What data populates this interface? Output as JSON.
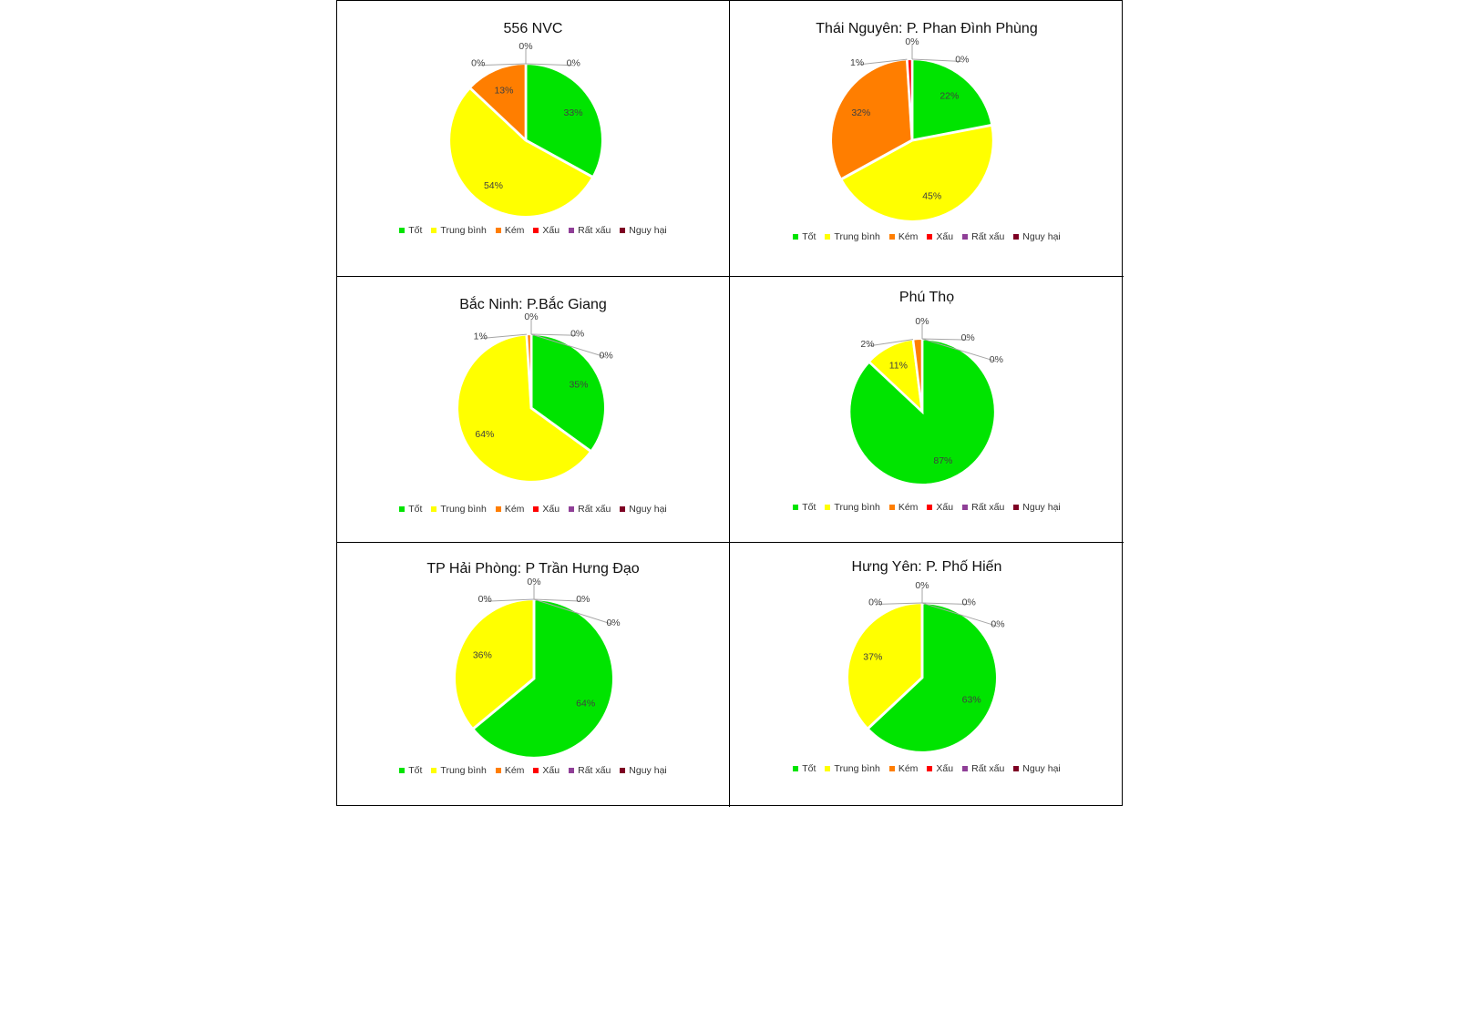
{
  "legend_labels": [
    "Tốt",
    "Trung bình",
    "Kém",
    "Xấu",
    "Rất xấu",
    "Nguy hại"
  ],
  "colors": [
    "#00e400",
    "#ffff00",
    "#ff7e00",
    "#ff0000",
    "#8f3f97",
    "#7e0023"
  ],
  "chart_data": [
    {
      "type": "pie",
      "title": "556 NVC",
      "categories": [
        "Tốt",
        "Trung bình",
        "Kém",
        "Xấu",
        "Rất xấu",
        "Nguy hại"
      ],
      "values": [
        33,
        54,
        13,
        0,
        0,
        0
      ],
      "labels": [
        "33%",
        "54%",
        "13%",
        "0%",
        "0%",
        "0%"
      ],
      "legend": "bottom"
    },
    {
      "type": "pie",
      "title": "Thái Nguyên: P. Phan Đình Phùng",
      "categories": [
        "Tốt",
        "Trung bình",
        "Kém",
        "Xấu",
        "Rất xấu",
        "Nguy hại"
      ],
      "values": [
        22,
        45,
        32,
        1,
        0,
        0
      ],
      "labels": [
        "22%",
        "45%",
        "32%",
        "1%",
        "0%",
        "0%"
      ],
      "legend": "bottom"
    },
    {
      "type": "pie",
      "title": "Bắc Ninh: P.Bắc Giang",
      "categories": [
        "Tốt",
        "Trung bình",
        "Kém",
        "Xấu",
        "Rất xấu",
        "Nguy hại"
      ],
      "values": [
        35,
        64,
        1,
        0,
        0,
        0
      ],
      "labels": [
        "35%",
        "64%",
        "1%",
        "0%",
        "0%",
        "0%"
      ],
      "legend": "bottom"
    },
    {
      "type": "pie",
      "title": "Phú Thọ",
      "categories": [
        "Tốt",
        "Trung bình",
        "Kém",
        "Xấu",
        "Rất xấu",
        "Nguy hại"
      ],
      "values": [
        87,
        11,
        2,
        0,
        0,
        0
      ],
      "labels": [
        "87%",
        "11%",
        "2%",
        "0%",
        "0%",
        "0%"
      ],
      "legend": "bottom"
    },
    {
      "type": "pie",
      "title": "TP Hải Phòng: P Trần Hưng Đạo",
      "categories": [
        "Tốt",
        "Trung bình",
        "Kém",
        "Xấu",
        "Rất xấu",
        "Nguy hại"
      ],
      "values": [
        64,
        36,
        0,
        0,
        0,
        0
      ],
      "labels": [
        "64%",
        "36%",
        "0%",
        "0%",
        "0%",
        "0%"
      ],
      "legend": "bottom"
    },
    {
      "type": "pie",
      "title": "Hưng Yên: P. Phố Hiến",
      "categories": [
        "Tốt",
        "Trung bình",
        "Kém",
        "Xấu",
        "Rất xấu",
        "Nguy hại"
      ],
      "values": [
        63,
        37,
        0,
        0,
        0,
        0
      ],
      "labels": [
        "63%",
        "37%",
        "0%",
        "0%",
        "0%",
        "0%"
      ],
      "legend": "bottom"
    }
  ]
}
